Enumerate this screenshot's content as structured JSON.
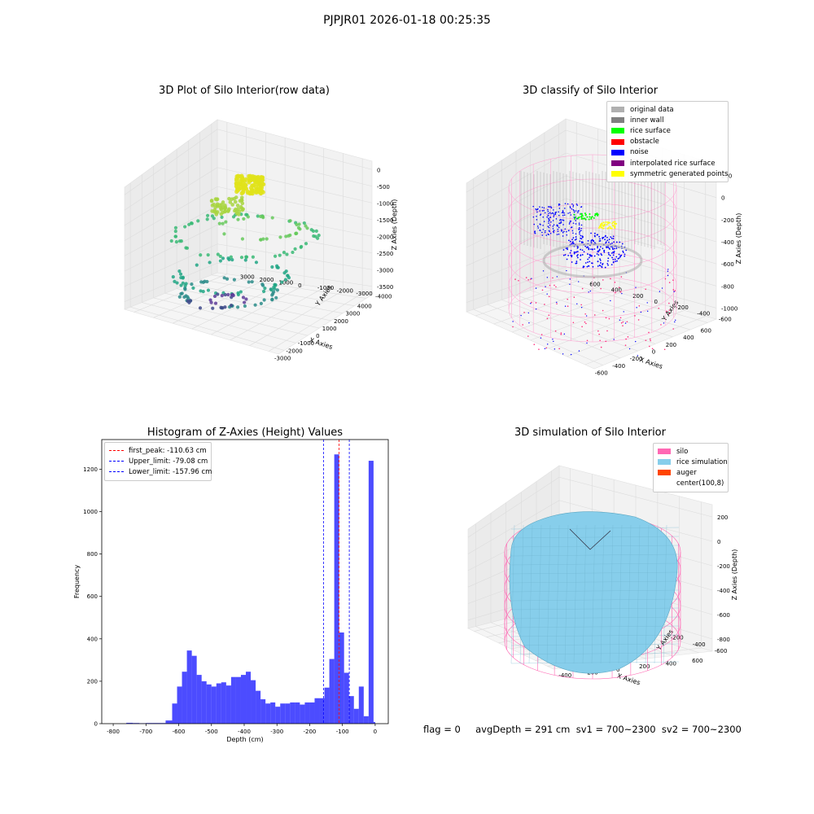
{
  "figure": {
    "suptitle": "PJPJR01 2026-01-18 00:25:35",
    "stats_line": "flag = 0     avgDepth = 291 cm  sv1 = 700~2300  sv2 = 700~2300"
  },
  "panels": {
    "raw": {
      "title": "3D Plot of Silo Interior(row data)",
      "xlabel": "X Axies",
      "ylabel": "Y Axies",
      "zlabel": "Z Axies (Depth)",
      "xticks": [
        "-3000",
        "-2000",
        "-1000",
        "0",
        "1000",
        "2000",
        "3000",
        "4000"
      ],
      "yticks": [
        "-4000",
        "-3000",
        "-2000",
        "-1000",
        "0",
        "1000",
        "2000",
        "3000"
      ],
      "zticks": [
        "-3500",
        "-3000",
        "-2500",
        "-2000",
        "-1500",
        "-1000",
        "-500",
        "0"
      ]
    },
    "classify": {
      "title": "3D classify of Silo Interior",
      "xlabel": "X Axies",
      "ylabel": "Y Axies",
      "zlabel": "Z Axies (Depth)",
      "xticks": [
        "-600",
        "-400",
        "-200",
        "0",
        "200",
        "400",
        "600"
      ],
      "yticks": [
        "-600",
        "-400",
        "-200",
        "0",
        "200",
        "400",
        "600"
      ],
      "zticks": [
        "-1000",
        "-800",
        "-600",
        "-400",
        "-200",
        "0",
        "200"
      ],
      "legend": [
        {
          "label": "original data",
          "color": "#b0b0b0"
        },
        {
          "label": "inner wall",
          "color": "#808080"
        },
        {
          "label": "rice surface",
          "color": "#00ff00"
        },
        {
          "label": "obstacle",
          "color": "#ff0000"
        },
        {
          "label": "noise",
          "color": "#0000ff"
        },
        {
          "label": "interpolated rice surface",
          "color": "#800080"
        },
        {
          "label": "symmetric generated points",
          "color": "#ffff00"
        }
      ]
    },
    "simulation": {
      "title": "3D simulation of Silo Interior",
      "xlabel": "X Axies",
      "ylabel": "Y Axies",
      "zlabel": "Z Axies (Depth)",
      "xticks": [
        "-400",
        "-200",
        "0",
        "200",
        "400",
        "600"
      ],
      "yticks": [
        "-600",
        "-400",
        "-200",
        "0",
        "200",
        "400",
        "600"
      ],
      "zticks": [
        "-800",
        "-600",
        "-400",
        "-200",
        "0",
        "200"
      ],
      "legend": [
        {
          "label": "silo",
          "color": "#ff69b4"
        },
        {
          "label": "rice simulation",
          "color": "#87ceeb"
        },
        {
          "label": "auger",
          "color": "#ff4500"
        },
        {
          "label": "center(100,8)",
          "color": ""
        }
      ]
    }
  },
  "chart_data": {
    "type": "bar",
    "title": "Histogram of Z-Axies (Height) Values",
    "xlabel": "Depth (cm)",
    "ylabel": "Frequency",
    "xlim": [
      -835,
      40
    ],
    "ylim": [
      0,
      1340
    ],
    "xticks": [
      -800,
      -700,
      -600,
      -500,
      -400,
      -300,
      -200,
      -100,
      0
    ],
    "yticks": [
      0,
      200,
      400,
      600,
      800,
      1000,
      1200
    ],
    "bar_color": "#0000ff",
    "bin_edges": [
      -760,
      -740,
      -720,
      -700,
      -680,
      -660,
      -640,
      -620,
      -605,
      -590,
      -575,
      -560,
      -545,
      -530,
      -515,
      -500,
      -485,
      -470,
      -455,
      -440,
      -425,
      -410,
      -395,
      -380,
      -365,
      -350,
      -335,
      -320,
      -305,
      -290,
      -275,
      -260,
      -245,
      -230,
      -215,
      -200,
      -185,
      -170,
      -155,
      -140,
      -125,
      -110,
      -95,
      -80,
      -65,
      -50,
      -35,
      -20,
      -5,
      0
    ],
    "counts": [
      4,
      3,
      2,
      3,
      3,
      3,
      15,
      95,
      175,
      245,
      345,
      320,
      230,
      200,
      185,
      175,
      190,
      195,
      180,
      220,
      220,
      230,
      245,
      205,
      155,
      115,
      95,
      100,
      80,
      95,
      95,
      100,
      100,
      90,
      100,
      100,
      120,
      120,
      170,
      305,
      1270,
      430,
      240,
      130,
      70,
      175,
      35,
      1240,
      8
    ],
    "vlines": [
      {
        "label": "first_peak: -110.63 cm",
        "x": -110.63,
        "color": "#ff0000"
      },
      {
        "label": "Upper_limit: -79.08 cm",
        "x": -79.08,
        "color": "#0000ff"
      },
      {
        "label": "Lower_limit: -157.96 cm",
        "x": -157.96,
        "color": "#0000ff"
      }
    ]
  }
}
